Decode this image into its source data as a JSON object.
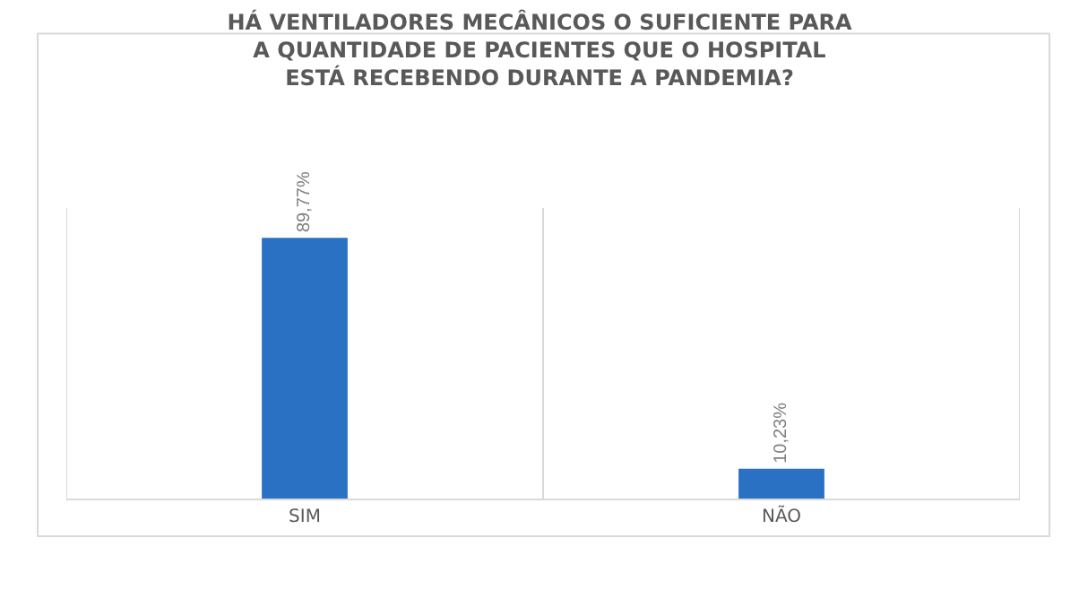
{
  "chart_data": {
    "type": "bar",
    "title": "HÁ VENTILADORES MECÂNICOS O SUFICIENTE PARA A QUANTIDADE DE PACIENTES QUE O HOSPITAL ESTÁ RECEBENDO DURANTE A PANDEMIA?",
    "categories": [
      "SIM",
      "NÃO"
    ],
    "values": [
      89.77,
      10.23
    ],
    "value_labels": [
      "89,77%",
      "10,23%"
    ],
    "color": "#2a71c4",
    "ylim": [
      0,
      100
    ],
    "grid": "x",
    "tick_labels": "x",
    "legend": false
  }
}
